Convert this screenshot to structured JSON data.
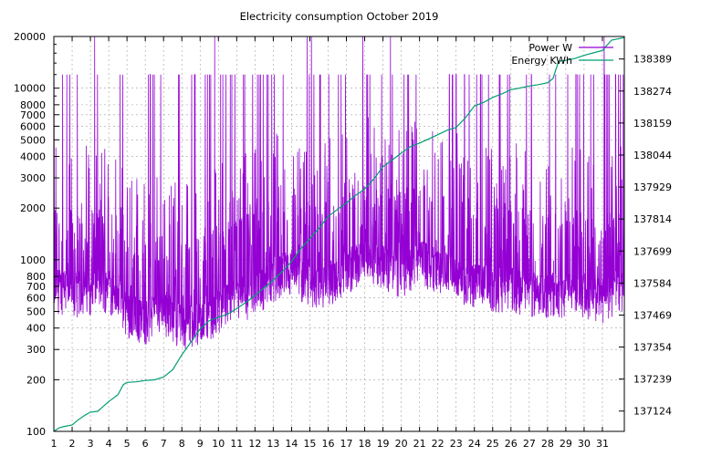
{
  "chart_data": {
    "type": "line",
    "title": "Electricity consumption October 2019",
    "xlabel": "",
    "ylabel": "",
    "y2label": "",
    "x_ticks": [
      "1",
      "2",
      "3",
      "4",
      "5",
      "6",
      "7",
      "8",
      "9",
      "10",
      "11",
      "12",
      "13",
      "14",
      "15",
      "16",
      "17",
      "18",
      "19",
      "20",
      "21",
      "22",
      "23",
      "24",
      "25",
      "26",
      "27",
      "28",
      "29",
      "30",
      "31"
    ],
    "x_range": [
      1,
      32.2
    ],
    "y_scale": "log",
    "y_range": [
      100,
      20000
    ],
    "y_ticks": [
      100,
      200,
      300,
      400,
      500,
      600,
      700,
      800,
      1000,
      2000,
      3000,
      4000,
      5000,
      6000,
      7000,
      8000,
      10000,
      20000
    ],
    "y2_range": [
      137051,
      138470
    ],
    "y2_ticks": [
      137124,
      137239,
      137354,
      137469,
      137584,
      137699,
      137814,
      137929,
      138044,
      138159,
      138274,
      138389
    ],
    "grid": true,
    "legend_position": "top-right",
    "series": [
      {
        "name": "Power W",
        "axis": "left",
        "color": "#9400d3",
        "baseline_daily_W": [
          [
            1,
            700
          ],
          [
            2,
            650
          ],
          [
            3,
            680
          ],
          [
            4,
            700
          ],
          [
            5,
            500
          ],
          [
            6,
            450
          ],
          [
            7,
            520
          ],
          [
            8,
            420
          ],
          [
            9,
            450
          ],
          [
            10,
            520
          ],
          [
            11,
            600
          ],
          [
            12,
            650
          ],
          [
            13,
            800
          ],
          [
            14,
            900
          ],
          [
            15,
            700
          ],
          [
            16,
            750
          ],
          [
            17,
            900
          ],
          [
            18,
            1000
          ],
          [
            19,
            950
          ],
          [
            20,
            850
          ],
          [
            21,
            1000
          ],
          [
            22,
            900
          ],
          [
            23,
            800
          ],
          [
            24,
            750
          ],
          [
            25,
            700
          ],
          [
            26,
            700
          ],
          [
            27,
            650
          ],
          [
            28,
            650
          ],
          [
            29,
            650
          ],
          [
            30,
            650
          ],
          [
            31,
            600
          ],
          [
            32,
            700
          ]
        ],
        "peak_W": 12000,
        "max_W": 20000
      },
      {
        "name": "Energy KWh",
        "axis": "right",
        "color": "#009e73",
        "points": [
          [
            1.0,
            137051
          ],
          [
            1.3,
            137064
          ],
          [
            1.6,
            137069
          ],
          [
            2.0,
            137074
          ],
          [
            2.3,
            137091
          ],
          [
            2.7,
            137109
          ],
          [
            3.0,
            137120
          ],
          [
            3.4,
            137123
          ],
          [
            3.6,
            137135
          ],
          [
            4.0,
            137158
          ],
          [
            4.5,
            137182
          ],
          [
            4.8,
            137219
          ],
          [
            5.0,
            137227
          ],
          [
            5.5,
            137229
          ],
          [
            6.0,
            137234
          ],
          [
            6.5,
            137236
          ],
          [
            7.0,
            137246
          ],
          [
            7.5,
            137273
          ],
          [
            8.0,
            137326
          ],
          [
            8.5,
            137372
          ],
          [
            9.0,
            137419
          ],
          [
            9.5,
            137449
          ],
          [
            10.0,
            137461
          ],
          [
            10.5,
            137472
          ],
          [
            11.0,
            137492
          ],
          [
            11.5,
            137514
          ],
          [
            12.0,
            137539
          ],
          [
            12.5,
            137567
          ],
          [
            13.0,
            137594
          ],
          [
            13.5,
            137626
          ],
          [
            14.0,
            137661
          ],
          [
            14.5,
            137707
          ],
          [
            15.0,
            137743
          ],
          [
            15.5,
            137781
          ],
          [
            16.0,
            137823
          ],
          [
            16.5,
            137848
          ],
          [
            17.0,
            137872
          ],
          [
            17.5,
            137899
          ],
          [
            18.0,
            137922
          ],
          [
            18.5,
            137958
          ],
          [
            19.0,
            138002
          ],
          [
            19.5,
            138026
          ],
          [
            20.0,
            138051
          ],
          [
            20.5,
            138074
          ],
          [
            21.0,
            138087
          ],
          [
            21.5,
            138102
          ],
          [
            22.0,
            138117
          ],
          [
            22.5,
            138133
          ],
          [
            23.0,
            138143
          ],
          [
            23.5,
            138177
          ],
          [
            24.0,
            138220
          ],
          [
            24.5,
            138233
          ],
          [
            25.0,
            138251
          ],
          [
            25.5,
            138264
          ],
          [
            26.0,
            138279
          ],
          [
            26.5,
            138285
          ],
          [
            27.0,
            138292
          ],
          [
            27.5,
            138297
          ],
          [
            28.0,
            138304
          ],
          [
            28.3,
            138319
          ],
          [
            28.6,
            138381
          ],
          [
            29.0,
            138384
          ],
          [
            29.5,
            138391
          ],
          [
            30.0,
            138402
          ],
          [
            30.5,
            138411
          ],
          [
            31.0,
            138420
          ],
          [
            31.5,
            138457
          ],
          [
            32.2,
            138466
          ]
        ]
      }
    ]
  },
  "colors": {
    "grid": "#a0a0a0",
    "axis": "#000000"
  }
}
